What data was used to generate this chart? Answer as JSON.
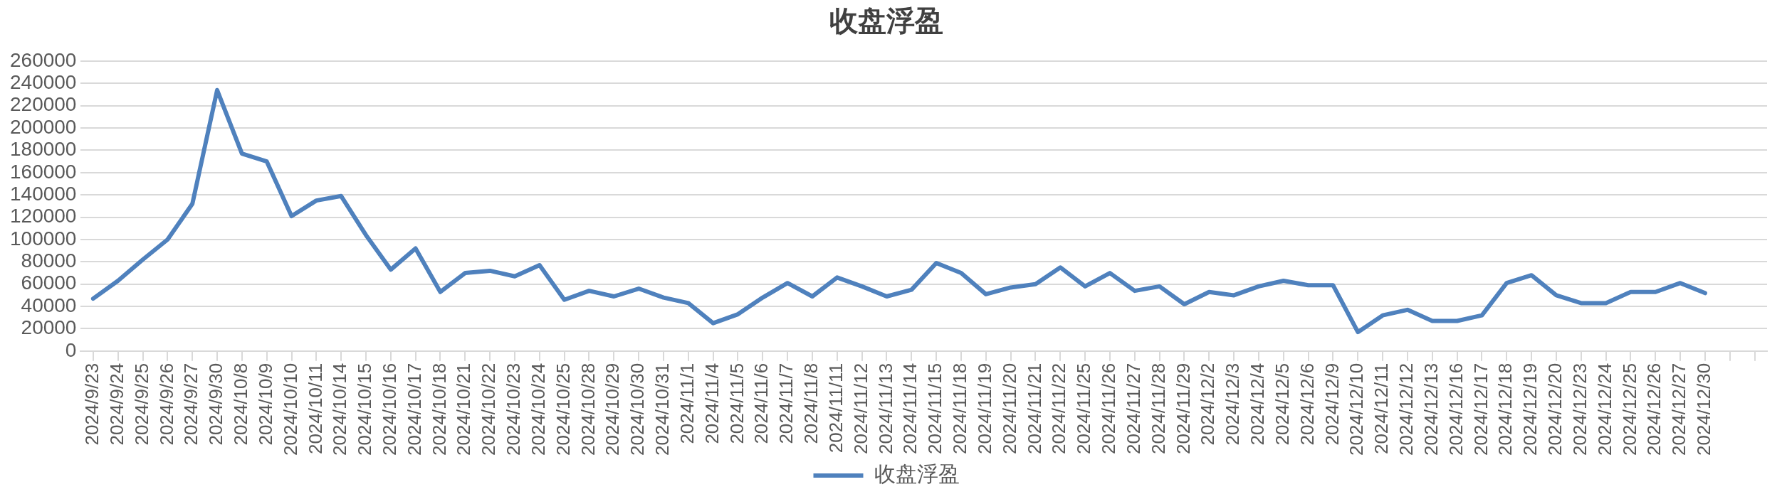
{
  "chart_data": {
    "type": "line",
    "title": "收盘浮盈",
    "categories": [
      "2024/9/23",
      "2024/9/24",
      "2024/9/25",
      "2024/9/26",
      "2024/9/27",
      "2024/9/30",
      "2024/10/8",
      "2024/10/9",
      "2024/10/10",
      "2024/10/11",
      "2024/10/14",
      "2024/10/15",
      "2024/10/16",
      "2024/10/17",
      "2024/10/18",
      "2024/10/21",
      "2024/10/22",
      "2024/10/23",
      "2024/10/24",
      "2024/10/25",
      "2024/10/28",
      "2024/10/29",
      "2024/10/30",
      "2024/10/31",
      "2024/11/1",
      "2024/11/4",
      "2024/11/5",
      "2024/11/6",
      "2024/11/7",
      "2024/11/8",
      "2024/11/11",
      "2024/11/12",
      "2024/11/13",
      "2024/11/14",
      "2024/11/15",
      "2024/11/18",
      "2024/11/19",
      "2024/11/20",
      "2024/11/21",
      "2024/11/22",
      "2024/11/25",
      "2024/11/26",
      "2024/11/27",
      "2024/11/28",
      "2024/11/29",
      "2024/12/2",
      "2024/12/3",
      "2024/12/4",
      "2024/12/5",
      "2024/12/6",
      "2024/12/9",
      "2024/12/10",
      "2024/12/11",
      "2024/12/12",
      "2024/12/13",
      "2024/12/16",
      "2024/12/17",
      "2024/12/18",
      "2024/12/19",
      "2024/12/20",
      "2024/12/23",
      "2024/12/24",
      "2024/12/25",
      "2024/12/26",
      "2024/12/27",
      "2024/12/30",
      null,
      null
    ],
    "series": [
      {
        "name": "收盘浮盈",
        "color": "#4f81bd",
        "values": [
          47000,
          63000,
          82000,
          100000,
          132000,
          234000,
          177000,
          170000,
          121000,
          135000,
          139000,
          104000,
          73000,
          92000,
          53000,
          70000,
          72000,
          67000,
          77000,
          46000,
          54000,
          49000,
          56000,
          48000,
          43000,
          25000,
          33000,
          48000,
          61000,
          49000,
          66000,
          58000,
          49000,
          55000,
          79000,
          70000,
          51000,
          57000,
          60000,
          75000,
          58000,
          70000,
          54000,
          58000,
          42000,
          53000,
          50000,
          58000,
          63000,
          59000,
          59000,
          17000,
          32000,
          37000,
          27000,
          27000,
          32000,
          61000,
          68000,
          50000,
          43000,
          43000,
          53000,
          53000,
          61000,
          52000,
          null,
          null
        ]
      }
    ],
    "ylim": [
      0,
      260000
    ],
    "yticks": [
      0,
      20000,
      40000,
      60000,
      80000,
      100000,
      120000,
      140000,
      160000,
      180000,
      200000,
      220000,
      240000,
      260000
    ],
    "grid": "y",
    "legend": "bottom",
    "marker": "none",
    "line_style": "solid"
  }
}
